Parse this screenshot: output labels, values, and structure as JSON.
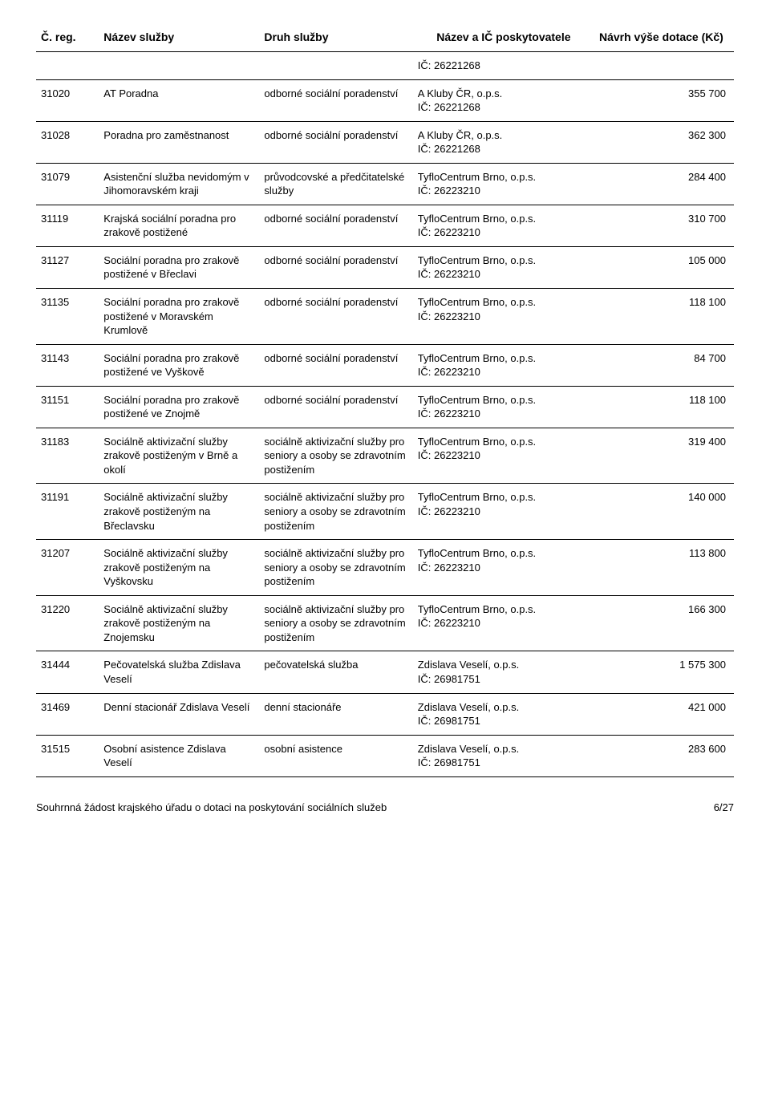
{
  "headers": {
    "reg": "Č. reg.",
    "nazev": "Název služby",
    "druh": "Druh služby",
    "poskyt": "Název a IČ poskytovatele",
    "navrh": "Návrh výše dotace (Kč)"
  },
  "pre_row_poskyt": "IČ: 26221268",
  "rows": [
    {
      "reg": "31020",
      "nazev": "AT Poradna",
      "druh": "odborné sociální poradenství",
      "poskyt": "A Kluby ČR, o.p.s.\nIČ: 26221268",
      "navrh": "355 700"
    },
    {
      "reg": "31028",
      "nazev": "Poradna pro zaměstnanost",
      "druh": "odborné sociální poradenství",
      "poskyt": "A Kluby ČR, o.p.s.\nIČ: 26221268",
      "navrh": "362 300"
    },
    {
      "reg": "31079",
      "nazev": "Asistenční služba nevidomým v Jihomoravském kraji",
      "druh": "průvodcovské a předčitatelské služby",
      "poskyt": "TyfloCentrum Brno, o.p.s.\nIČ: 26223210",
      "navrh": "284 400"
    },
    {
      "reg": "31119",
      "nazev": "Krajská sociální poradna pro zrakově postižené",
      "druh": "odborné sociální poradenství",
      "poskyt": "TyfloCentrum Brno, o.p.s.\nIČ: 26223210",
      "navrh": "310 700"
    },
    {
      "reg": "31127",
      "nazev": "Sociální poradna pro zrakově postižené v Břeclavi",
      "druh": "odborné sociální poradenství",
      "poskyt": "TyfloCentrum Brno, o.p.s.\nIČ: 26223210",
      "navrh": "105 000"
    },
    {
      "reg": "31135",
      "nazev": "Sociální poradna pro zrakově postižené v Moravském Krumlově",
      "druh": "odborné sociální poradenství",
      "poskyt": "TyfloCentrum Brno, o.p.s.\nIČ: 26223210",
      "navrh": "118 100"
    },
    {
      "reg": "31143",
      "nazev": "Sociální poradna pro zrakově postižené ve Vyškově",
      "druh": "odborné sociální poradenství",
      "poskyt": "TyfloCentrum Brno, o.p.s.\nIČ: 26223210",
      "navrh": "84 700"
    },
    {
      "reg": "31151",
      "nazev": "Sociální poradna pro zrakově postižené ve Znojmě",
      "druh": "odborné sociální poradenství",
      "poskyt": "TyfloCentrum Brno, o.p.s.\nIČ: 26223210",
      "navrh": "118 100"
    },
    {
      "reg": "31183",
      "nazev": "Sociálně aktivizační služby zrakově postiženým v Brně a okolí",
      "druh": "sociálně aktivizační služby pro seniory a osoby se zdravotním postižením",
      "poskyt": "TyfloCentrum Brno, o.p.s.\nIČ: 26223210",
      "navrh": "319 400"
    },
    {
      "reg": "31191",
      "nazev": "Sociálně aktivizační služby zrakově postiženým na Břeclavsku",
      "druh": "sociálně aktivizační služby pro seniory a osoby se zdravotním postižením",
      "poskyt": "TyfloCentrum Brno, o.p.s.\nIČ: 26223210",
      "navrh": "140 000"
    },
    {
      "reg": "31207",
      "nazev": "Sociálně aktivizační služby zrakově postiženým na Vyškovsku",
      "druh": "sociálně aktivizační služby pro seniory a osoby se zdravotním postižením",
      "poskyt": "TyfloCentrum Brno, o.p.s.\nIČ: 26223210",
      "navrh": "113 800"
    },
    {
      "reg": "31220",
      "nazev": "Sociálně aktivizační služby zrakově postiženým na Znojemsku",
      "druh": "sociálně aktivizační služby pro seniory a osoby se zdravotním postižením",
      "poskyt": "TyfloCentrum Brno, o.p.s.\nIČ: 26223210",
      "navrh": "166 300"
    },
    {
      "reg": "31444",
      "nazev": "Pečovatelská služba Zdislava Veselí",
      "druh": "pečovatelská služba",
      "poskyt": "Zdislava Veselí, o.p.s.\nIČ: 26981751",
      "navrh": "1 575 300"
    },
    {
      "reg": "31469",
      "nazev": "Denní stacionář Zdislava Veselí",
      "druh": "denní stacionáře",
      "poskyt": "Zdislava Veselí, o.p.s.\nIČ: 26981751",
      "navrh": "421 000"
    },
    {
      "reg": "31515",
      "nazev": "Osobní asistence Zdislava Veselí",
      "druh": "osobní asistence",
      "poskyt": "Zdislava Veselí, o.p.s.\nIČ: 26981751",
      "navrh": "283 600"
    }
  ],
  "footer_text": "Souhrnná žádost krajského úřadu o dotaci na poskytování sociálních služeb",
  "page_number": "6/27"
}
